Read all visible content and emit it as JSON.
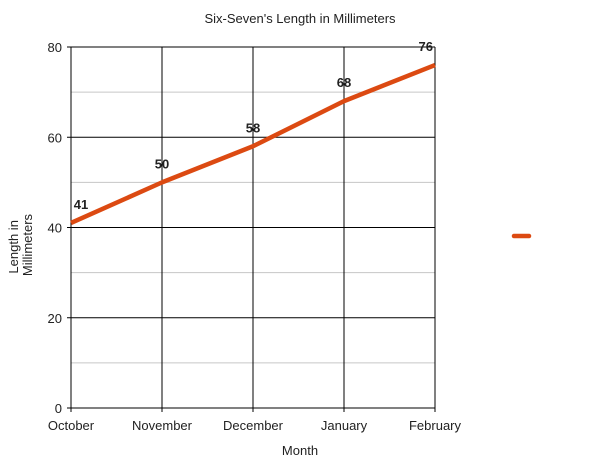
{
  "chart_data": {
    "type": "line",
    "title": "Six-Seven's Length in Millimeters",
    "xlabel": "Month",
    "ylabel_lines": [
      "Length in",
      "Millimeters"
    ],
    "categories": [
      "October",
      "November",
      "December",
      "January",
      "February"
    ],
    "series": [
      {
        "values": [
          41,
          50,
          58,
          68,
          76
        ],
        "color": "#dc4a12"
      }
    ],
    "data_labels": [
      "41",
      "50",
      "58",
      "68",
      "76"
    ],
    "ylim": [
      0,
      80
    ],
    "yticks": [
      0,
      20,
      40,
      60,
      80
    ],
    "yticks_labels": [
      "0",
      "20",
      "40",
      "60",
      "80"
    ],
    "minor_grid_step": 10,
    "grid": true,
    "legend": {
      "placement": "right",
      "swatch_only": true
    }
  }
}
